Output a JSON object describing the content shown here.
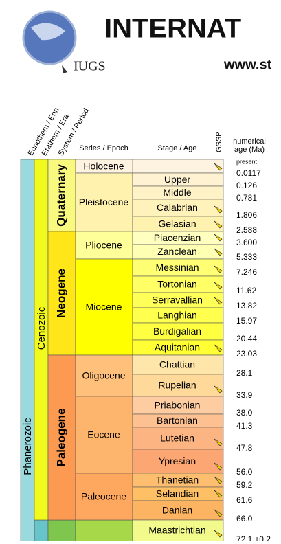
{
  "header": {
    "title": "INTERNAT",
    "url": "www.st",
    "logo": "IUGS"
  },
  "columns": {
    "eon": "Eonothem / Eon",
    "era": "Erathem / Era",
    "period": "System / Period",
    "epoch": "Series / Epoch",
    "stage": "Stage / Age",
    "gssp": "GSSP",
    "age_line1": "numerical",
    "age_line2": "age (Ma)"
  },
  "eon": {
    "name": "Phanerozoic",
    "color": "#9ad9dd"
  },
  "era": {
    "name": "Cenozoic",
    "color": "#f2f91d"
  },
  "periods": [
    {
      "name": "Quaternary",
      "color": "#f9f97f"
    },
    {
      "name": "Neogene",
      "color": "#ffe619"
    },
    {
      "name": "Paleogene",
      "color": "#fd9a52"
    }
  ],
  "epochs": [
    {
      "name": "Holocene",
      "color": "#fef2e0"
    },
    {
      "name": "Pleistocene",
      "color": "#fff2ae"
    },
    {
      "name": "Pliocene",
      "color": "#ffff99"
    },
    {
      "name": "Miocene",
      "color": "#ffff00"
    },
    {
      "name": "Oligocene",
      "color": "#fec07a"
    },
    {
      "name": "Eocene",
      "color": "#fdb46c"
    },
    {
      "name": "Paleocene",
      "color": "#fda75f"
    }
  ],
  "stages": [
    {
      "name": "Upper",
      "color": "#fff2d3",
      "gssp": false
    },
    {
      "name": "Middle",
      "color": "#fff2c7",
      "gssp": false
    },
    {
      "name": "Calabrian",
      "color": "#fff2ba",
      "gssp": true
    },
    {
      "name": "Gelasian",
      "color": "#fff2ae",
      "gssp": true
    },
    {
      "name": "Piacenzian",
      "color": "#ffffbf",
      "gssp": true
    },
    {
      "name": "Zanclean",
      "color": "#ffffb3",
      "gssp": true
    },
    {
      "name": "Messinian",
      "color": "#ffff73",
      "gssp": true
    },
    {
      "name": "Tortonian",
      "color": "#ffff66",
      "gssp": true
    },
    {
      "name": "Serravallian",
      "color": "#ffff59",
      "gssp": true
    },
    {
      "name": "Langhian",
      "color": "#ffff4d",
      "gssp": false
    },
    {
      "name": "Burdigalian",
      "color": "#ffff41",
      "gssp": false
    },
    {
      "name": "Aquitanian",
      "color": "#ffff33",
      "gssp": true
    },
    {
      "name": "Chattian",
      "color": "#fee6aa",
      "gssp": false
    },
    {
      "name": "Rupelian",
      "color": "#fed99a",
      "gssp": true
    },
    {
      "name": "Priabonian",
      "color": "#fdcda1",
      "gssp": false
    },
    {
      "name": "Bartonian",
      "color": "#fdc091",
      "gssp": false
    },
    {
      "name": "Lutetian",
      "color": "#fcb482",
      "gssp": true
    },
    {
      "name": "Ypresian",
      "color": "#fca773",
      "gssp": true
    },
    {
      "name": "Thanetian",
      "color": "#fdbf6f",
      "gssp": true
    },
    {
      "name": "Selandian",
      "color": "#febf65",
      "gssp": true
    },
    {
      "name": "Danian",
      "color": "#fdb462",
      "gssp": true
    },
    {
      "name": "Maastrichtian",
      "color": "#f2fa8c",
      "gssp": true
    }
  ],
  "ages": [
    "present",
    "0.0117",
    "0.126",
    "0.781",
    "1.806",
    "2.588",
    "3.600",
    "5.333",
    "7.246",
    "11.62",
    "13.82",
    "15.97",
    "20.44",
    "23.03",
    "28.1",
    "33.9",
    "38.0",
    "41.3",
    "47.8",
    "56.0",
    "59.2",
    "61.6",
    "66.0",
    "72.1 ±0.2"
  ]
}
